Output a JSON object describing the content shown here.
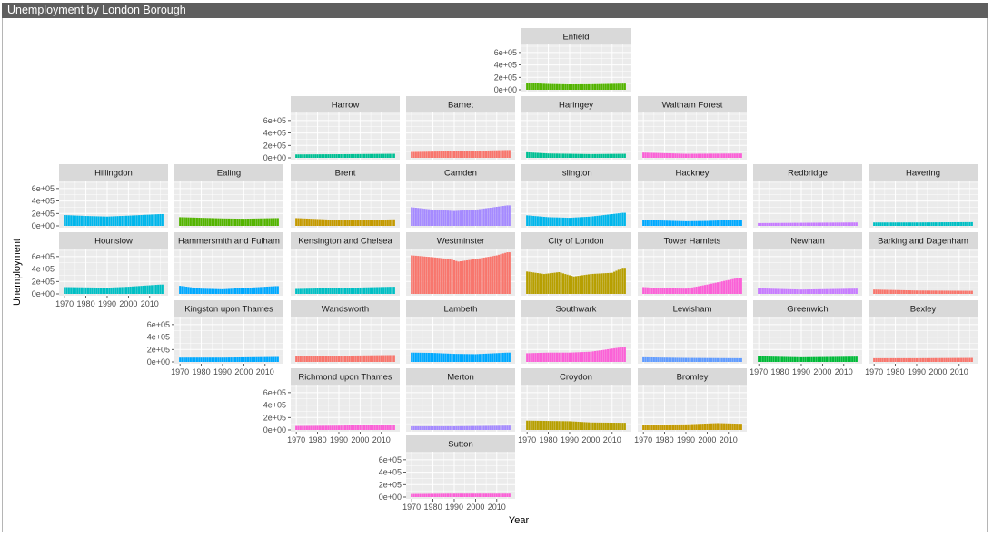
{
  "window": {
    "title": "Unemployment by London Borough"
  },
  "chart_data": {
    "type": "bar",
    "title": "",
    "xlabel": "Year",
    "ylabel": "Unemployment",
    "x_range": [
      1970,
      2016
    ],
    "ylim": [
      0,
      700000
    ],
    "x_ticks": [
      1970,
      1980,
      1990,
      2000,
      2010
    ],
    "y_ticks": [
      {
        "value": 0,
        "label": "0e+00"
      },
      {
        "value": 200000,
        "label": "2e+05"
      },
      {
        "value": 400000,
        "label": "4e+05"
      },
      {
        "value": 600000,
        "label": "6e+05"
      }
    ],
    "facets": [
      {
        "name": "Enfield",
        "color": "#53b400",
        "profile": [
          [
            1970,
            110000
          ],
          [
            1980,
            95000
          ],
          [
            1990,
            88000
          ],
          [
            2000,
            90000
          ],
          [
            2015,
            100000
          ]
        ]
      },
      {
        "name": "Harrow",
        "color": "#00c094",
        "profile": [
          [
            1970,
            55000
          ],
          [
            1990,
            58000
          ],
          [
            2015,
            65000
          ]
        ]
      },
      {
        "name": "Barnet",
        "color": "#f8766d",
        "profile": [
          [
            1970,
            95000
          ],
          [
            1990,
            105000
          ],
          [
            2015,
            125000
          ]
        ]
      },
      {
        "name": "Haringey",
        "color": "#00c094",
        "profile": [
          [
            1970,
            90000
          ],
          [
            1980,
            70000
          ],
          [
            2000,
            60000
          ],
          [
            2015,
            65000
          ]
        ]
      },
      {
        "name": "Waltham Forest",
        "color": "#fb61d7",
        "profile": [
          [
            1970,
            85000
          ],
          [
            1990,
            65000
          ],
          [
            2015,
            70000
          ]
        ]
      },
      {
        "name": "Hillingdon",
        "color": "#00b6eb",
        "profile": [
          [
            1970,
            175000
          ],
          [
            1980,
            160000
          ],
          [
            1990,
            150000
          ],
          [
            2000,
            165000
          ],
          [
            2015,
            190000
          ]
        ]
      },
      {
        "name": "Ealing",
        "color": "#53b400",
        "profile": [
          [
            1970,
            140000
          ],
          [
            1980,
            130000
          ],
          [
            1990,
            120000
          ],
          [
            2000,
            115000
          ],
          [
            2015,
            125000
          ]
        ]
      },
      {
        "name": "Brent",
        "color": "#c49a00",
        "profile": [
          [
            1970,
            125000
          ],
          [
            1980,
            110000
          ],
          [
            1990,
            95000
          ],
          [
            2000,
            90000
          ],
          [
            2015,
            105000
          ]
        ]
      },
      {
        "name": "Camden",
        "color": "#a58aff",
        "profile": [
          [
            1970,
            300000
          ],
          [
            1980,
            260000
          ],
          [
            1990,
            240000
          ],
          [
            2000,
            260000
          ],
          [
            2015,
            330000
          ]
        ]
      },
      {
        "name": "Islington",
        "color": "#00b6eb",
        "profile": [
          [
            1970,
            170000
          ],
          [
            1980,
            140000
          ],
          [
            1990,
            130000
          ],
          [
            2000,
            150000
          ],
          [
            2015,
            210000
          ]
        ]
      },
      {
        "name": "Hackney",
        "color": "#00a9ff",
        "profile": [
          [
            1970,
            100000
          ],
          [
            1980,
            85000
          ],
          [
            1990,
            75000
          ],
          [
            2000,
            80000
          ],
          [
            2015,
            100000
          ]
        ]
      },
      {
        "name": "Redbridge",
        "color": "#c77cff",
        "profile": [
          [
            1970,
            45000
          ],
          [
            1990,
            50000
          ],
          [
            2015,
            55000
          ]
        ]
      },
      {
        "name": "Havering",
        "color": "#00bfc4",
        "profile": [
          [
            1970,
            55000
          ],
          [
            1990,
            55000
          ],
          [
            2015,
            60000
          ]
        ]
      },
      {
        "name": "Hounslow",
        "color": "#00bfc4",
        "profile": [
          [
            1970,
            110000
          ],
          [
            1980,
            105000
          ],
          [
            1990,
            100000
          ],
          [
            2000,
            115000
          ],
          [
            2015,
            150000
          ]
        ]
      },
      {
        "name": "Hammersmith and Fulham",
        "color": "#00a9ff",
        "profile": [
          [
            1970,
            130000
          ],
          [
            1980,
            85000
          ],
          [
            1990,
            75000
          ],
          [
            2000,
            95000
          ],
          [
            2015,
            125000
          ]
        ]
      },
      {
        "name": "Kensington and Chelsea",
        "color": "#00bfc4",
        "profile": [
          [
            1970,
            80000
          ],
          [
            1990,
            95000
          ],
          [
            2015,
            115000
          ]
        ]
      },
      {
        "name": "Westminster",
        "color": "#f8766d",
        "profile": [
          [
            1970,
            620000
          ],
          [
            1980,
            590000
          ],
          [
            1988,
            560000
          ],
          [
            1992,
            520000
          ],
          [
            2000,
            560000
          ],
          [
            2010,
            620000
          ],
          [
            2015,
            670000
          ]
        ]
      },
      {
        "name": "City of London",
        "color": "#b79f00",
        "profile": [
          [
            1970,
            360000
          ],
          [
            1978,
            320000
          ],
          [
            1985,
            350000
          ],
          [
            1992,
            280000
          ],
          [
            2000,
            320000
          ],
          [
            2010,
            340000
          ],
          [
            2015,
            420000
          ]
        ]
      },
      {
        "name": "Tower Hamlets",
        "color": "#fb61d7",
        "profile": [
          [
            1970,
            110000
          ],
          [
            1980,
            90000
          ],
          [
            1990,
            85000
          ],
          [
            2000,
            150000
          ],
          [
            2015,
            260000
          ]
        ]
      },
      {
        "name": "Newham",
        "color": "#c77cff",
        "profile": [
          [
            1970,
            90000
          ],
          [
            1990,
            70000
          ],
          [
            2015,
            85000
          ]
        ]
      },
      {
        "name": "Barking and Dagenham",
        "color": "#f8766d",
        "profile": [
          [
            1970,
            70000
          ],
          [
            1990,
            55000
          ],
          [
            2015,
            50000
          ]
        ]
      },
      {
        "name": "Kingston upon Thames",
        "color": "#00a9ff",
        "profile": [
          [
            1970,
            70000
          ],
          [
            1990,
            70000
          ],
          [
            2015,
            80000
          ]
        ]
      },
      {
        "name": "Wandsworth",
        "color": "#f8766d",
        "profile": [
          [
            1970,
            95000
          ],
          [
            1990,
            100000
          ],
          [
            2015,
            110000
          ]
        ]
      },
      {
        "name": "Lambeth",
        "color": "#00a9ff",
        "profile": [
          [
            1970,
            150000
          ],
          [
            1980,
            145000
          ],
          [
            1990,
            130000
          ],
          [
            2000,
            125000
          ],
          [
            2015,
            150000
          ]
        ]
      },
      {
        "name": "Southwark",
        "color": "#fb61d7",
        "profile": [
          [
            1970,
            140000
          ],
          [
            1980,
            150000
          ],
          [
            1990,
            150000
          ],
          [
            2000,
            165000
          ],
          [
            2015,
            240000
          ]
        ]
      },
      {
        "name": "Lewisham",
        "color": "#619cff",
        "profile": [
          [
            1970,
            75000
          ],
          [
            1990,
            65000
          ],
          [
            2015,
            60000
          ]
        ]
      },
      {
        "name": "Greenwich",
        "color": "#00ba38",
        "profile": [
          [
            1970,
            90000
          ],
          [
            1990,
            75000
          ],
          [
            2015,
            85000
          ]
        ]
      },
      {
        "name": "Bexley",
        "color": "#f8766d",
        "profile": [
          [
            1970,
            60000
          ],
          [
            1990,
            60000
          ],
          [
            2015,
            65000
          ]
        ]
      },
      {
        "name": "Richmond upon Thames",
        "color": "#fb61d7",
        "profile": [
          [
            1970,
            65000
          ],
          [
            1990,
            70000
          ],
          [
            2015,
            85000
          ]
        ]
      },
      {
        "name": "Merton",
        "color": "#a58aff",
        "profile": [
          [
            1970,
            60000
          ],
          [
            1990,
            60000
          ],
          [
            2015,
            70000
          ]
        ]
      },
      {
        "name": "Croydon",
        "color": "#b79f00",
        "profile": [
          [
            1970,
            150000
          ],
          [
            1980,
            145000
          ],
          [
            1990,
            140000
          ],
          [
            2000,
            120000
          ],
          [
            2015,
            115000
          ]
        ]
      },
      {
        "name": "Bromley",
        "color": "#c49a00",
        "profile": [
          [
            1970,
            85000
          ],
          [
            1990,
            90000
          ],
          [
            2005,
            110000
          ],
          [
            2015,
            100000
          ]
        ]
      },
      {
        "name": "Sutton",
        "color": "#fb61d7",
        "profile": [
          [
            1970,
            50000
          ],
          [
            1990,
            55000
          ],
          [
            2015,
            55000
          ]
        ]
      }
    ]
  }
}
